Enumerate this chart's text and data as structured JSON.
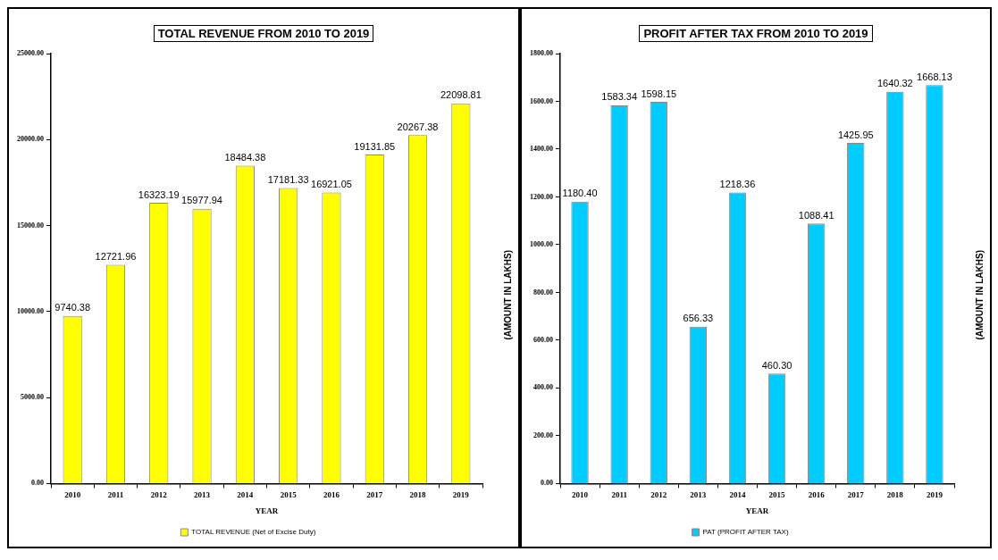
{
  "chart_data": [
    {
      "type": "bar",
      "title": "TOTAL REVENUE FROM 2010 TO 2019",
      "xlabel": "YEAR",
      "ylabel": "(AMOUNT  IN LAKHS)",
      "categories": [
        "2010",
        "2011",
        "2012",
        "2013",
        "2014",
        "2015",
        "2016",
        "2017",
        "2018",
        "2019"
      ],
      "series": [
        {
          "name": "TOTAL REVENUE (Net of Excise Duty)",
          "color": "#ffff00",
          "values": [
            9740.38,
            12721.96,
            16323.19,
            15977.94,
            18484.38,
            17181.33,
            16921.05,
            19131.85,
            20267.38,
            22098.81
          ],
          "value_labels": [
            "9740.38",
            "12721.96",
            "16323.19",
            "15977.94",
            "18484.38",
            "17181.33",
            "16921.05",
            "19131.85",
            "20267.38",
            "22098.81"
          ]
        }
      ],
      "ylim": [
        0,
        25000
      ],
      "yticks": [
        {
          "value": 0,
          "label": "0.00"
        },
        {
          "value": 5000,
          "label": "5000.00"
        },
        {
          "value": 10000,
          "label": "10000.00"
        },
        {
          "value": 15000,
          "label": "15000.00"
        },
        {
          "value": 20000,
          "label": "20000.00"
        },
        {
          "value": 25000,
          "label": "25000.00"
        }
      ],
      "legend": "bottom"
    },
    {
      "type": "bar",
      "title": "PROFIT AFTER TAX FROM 2010 TO 2019",
      "xlabel": "YEAR",
      "ylabel": "(AMOUNT  IN LAKHS)",
      "categories": [
        "2010",
        "2011",
        "2012",
        "2013",
        "2014",
        "2015",
        "2016",
        "2017",
        "2018",
        "2019"
      ],
      "series": [
        {
          "name": "PAT (PROFIT AFTER TAX)",
          "color": "#00ccff",
          "values": [
            1180.4,
            1583.34,
            1598.15,
            656.33,
            1218.36,
            460.3,
            1088.41,
            1425.95,
            1640.32,
            1668.13
          ],
          "value_labels": [
            "1180.40",
            "1583.34",
            "1598.15",
            "656.33",
            "1218.36",
            "460.30",
            "1088.41",
            "1425.95",
            "1640.32",
            "1668.13"
          ]
        }
      ],
      "ylim": [
        0,
        1800
      ],
      "yticks": [
        {
          "value": 0,
          "label": "0.00"
        },
        {
          "value": 200,
          "label": "200.00"
        },
        {
          "value": 400,
          "label": "400.00"
        },
        {
          "value": 600,
          "label": "600.00"
        },
        {
          "value": 800,
          "label": "800.00"
        },
        {
          "value": 1000,
          "label": "1000.00"
        },
        {
          "value": 1200,
          "label": "1200.00"
        },
        {
          "value": 1400,
          "label": "1400.00"
        },
        {
          "value": 1600,
          "label": "1600.00"
        },
        {
          "value": 1800,
          "label": "1800.00"
        }
      ],
      "legend": "bottom"
    }
  ]
}
